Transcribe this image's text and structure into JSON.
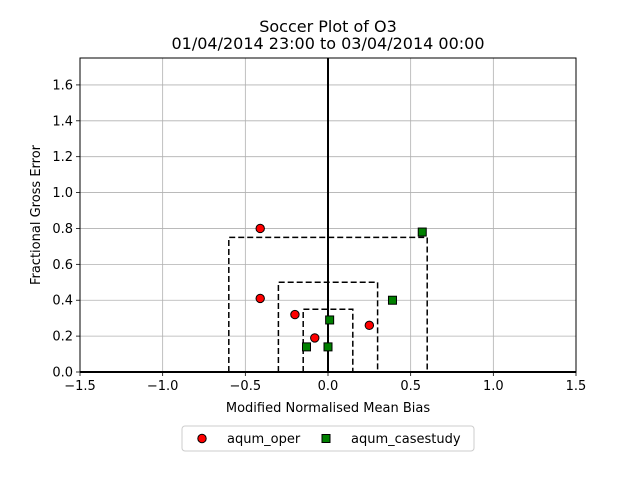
{
  "chart_data": {
    "type": "scatter",
    "title": "Soccer Plot of O3",
    "subtitle": "01/04/2014 23:00 to 03/04/2014 00:00",
    "xlabel": "Modified Normalised Mean Bias",
    "ylabel": "Fractional Gross Error",
    "xlim": [
      -1.5,
      1.5
    ],
    "ylim": [
      0.0,
      1.75
    ],
    "grid": true,
    "xticks": [
      -1.5,
      -1.0,
      -0.5,
      0.0,
      0.5,
      1.0,
      1.5
    ],
    "xtick_labels": [
      "−1.5",
      "−1.0",
      "−0.5",
      "0.0",
      "0.5",
      "1.0",
      "1.5"
    ],
    "yticks": [
      0.0,
      0.2,
      0.4,
      0.6,
      0.8,
      1.0,
      1.2,
      1.4,
      1.6
    ],
    "ytick_labels": [
      "0.0",
      "0.2",
      "0.4",
      "0.6",
      "0.8",
      "1.0",
      "1.2",
      "1.4",
      "1.6"
    ],
    "target_boxes": [
      {
        "mnmb": 0.15,
        "fge": 0.35
      },
      {
        "mnmb": 0.3,
        "fge": 0.5
      },
      {
        "mnmb": 0.6,
        "fge": 0.75
      }
    ],
    "legend_position": "below",
    "series": [
      {
        "name": "aqum_oper",
        "marker": "circle",
        "color": "#ff0000",
        "x": [
          -0.41,
          -0.41,
          -0.2,
          -0.08,
          0.25
        ],
        "y": [
          0.8,
          0.41,
          0.32,
          0.19,
          0.26
        ]
      },
      {
        "name": "aqum_casestudy",
        "marker": "square",
        "color": "#008000",
        "x": [
          0.57,
          0.39,
          0.01,
          -0.13,
          0.0
        ],
        "y": [
          0.78,
          0.4,
          0.29,
          0.14,
          0.14
        ]
      }
    ]
  }
}
